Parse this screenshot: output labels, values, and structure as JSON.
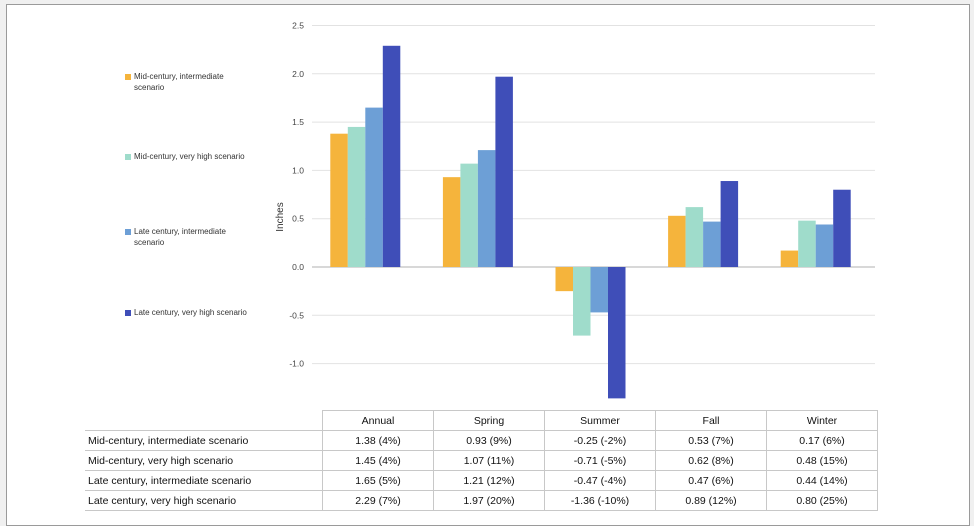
{
  "chart_data": {
    "type": "bar",
    "ylabel": "Inches",
    "ylim": [
      -1.5,
      2.5
    ],
    "yticks": [
      "2.5",
      "2.0",
      "1.5",
      "1.0",
      "0.5",
      "0.0",
      "-0.5",
      "-1.0"
    ],
    "grid": true,
    "legend_position": "left",
    "categories": [
      "Annual",
      "Spring",
      "Summer",
      "Fall",
      "Winter"
    ],
    "series": [
      {
        "name": "Mid-century, intermediate scenario",
        "legend_lines": [
          "Mid-century, intermediate",
          "scenario"
        ],
        "table_label": "Mid-century, intermediate scenario",
        "color": "#f5b43c",
        "values": [
          1.38,
          0.93,
          -0.25,
          0.53,
          0.17
        ],
        "cells": [
          "1.38 (4%)",
          "0.93 (9%)",
          "-0.25 (-2%)",
          "0.53 (7%)",
          "0.17 (6%)"
        ]
      },
      {
        "name": "Mid-century, very high scenario",
        "legend_lines": [
          "Mid-century, very high scenario"
        ],
        "table_label": "Mid-century, very high scenario",
        "color": "#9fdccb",
        "values": [
          1.45,
          1.07,
          -0.71,
          0.62,
          0.48
        ],
        "cells": [
          "1.45 (4%)",
          "1.07 (11%)",
          "-0.71 (-5%)",
          "0.62 (8%)",
          "0.48 (15%)"
        ]
      },
      {
        "name": "Late century, intermediate scenario",
        "legend_lines": [
          "Late century, intermediate",
          "scenario"
        ],
        "table_label": "Late century, intermediate scenario",
        "color": "#6d9fd6",
        "values": [
          1.65,
          1.21,
          -0.47,
          0.47,
          0.44
        ],
        "cells": [
          "1.65 (5%)",
          "1.21 (12%)",
          "-0.47 (-4%)",
          "0.47 (6%)",
          "0.44 (14%)"
        ]
      },
      {
        "name": "Late century, very high scenario",
        "legend_lines": [
          "Late century, very high scenario"
        ],
        "table_label": "Late century, very high scenario",
        "color": "#3f4eb8",
        "values": [
          2.29,
          1.97,
          -1.36,
          0.89,
          0.8
        ],
        "cells": [
          "2.29 (7%)",
          "1.97 (20%)",
          "-1.36 (-10%)",
          "0.89 (12%)",
          "0.80 (25%)"
        ]
      }
    ]
  }
}
